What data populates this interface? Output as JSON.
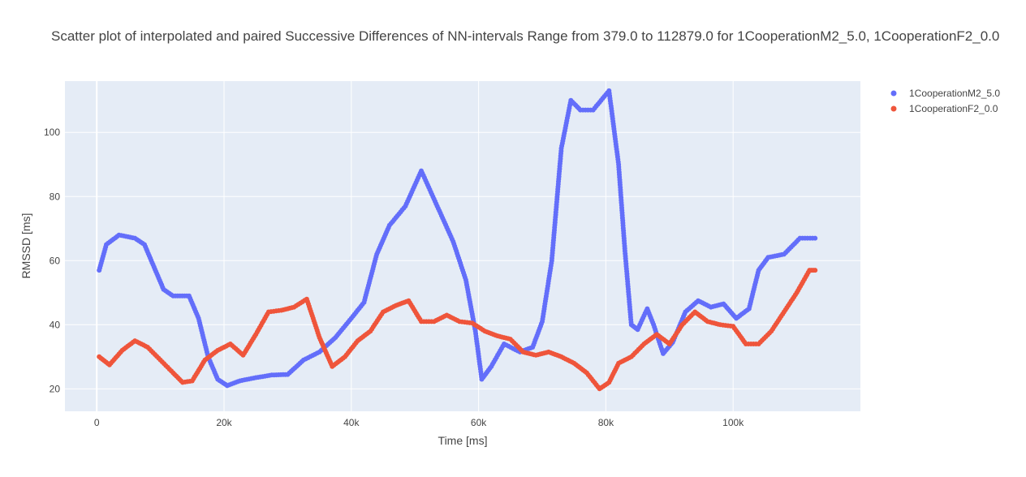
{
  "chart_data": {
    "type": "scatter",
    "title": "Scatter plot of interpolated and paired Successive Differences of NN-intervals Range from 379.0 to 112879.0 for 1CooperationM2_5.0, 1CooperationF2_0.0",
    "xlabel": "Time [ms]",
    "ylabel": "RMSSD [ms]",
    "xlim": [
      -5000,
      120000
    ],
    "ylim": [
      13,
      116
    ],
    "x_tick_values": [
      0,
      20000,
      40000,
      60000,
      80000,
      100000
    ],
    "x_tick_labels": [
      "0",
      "20k",
      "40k",
      "60k",
      "80k",
      "100k"
    ],
    "y_tick_values": [
      20,
      40,
      60,
      80,
      100
    ],
    "y_tick_labels": [
      "20",
      "40",
      "60",
      "80",
      "100"
    ],
    "grid": true,
    "legend_position": "top-right",
    "x_range": [
      379,
      112879
    ],
    "series": [
      {
        "name": "1CooperationM2_5.0",
        "color": "#636efa",
        "x": [
          379,
          1500,
          3500,
          6000,
          7500,
          9000,
          10500,
          12000,
          14500,
          16000,
          17500,
          19000,
          20500,
          22500,
          25000,
          27500,
          30000,
          32500,
          35000,
          37500,
          40000,
          42000,
          44000,
          46000,
          48500,
          51000,
          53500,
          56000,
          58000,
          59500,
          60500,
          62000,
          64000,
          66500,
          68500,
          70000,
          71500,
          73000,
          74500,
          76000,
          78000,
          80500,
          82000,
          83000,
          84000,
          85000,
          86500,
          87500,
          89000,
          90500,
          92500,
          94500,
          96500,
          98500,
          100500,
          102500,
          104000,
          105500,
          108000,
          110500,
          112879
        ],
        "y": [
          57,
          65,
          68,
          67,
          65,
          58,
          51,
          49,
          49,
          42,
          30,
          23,
          21,
          22.5,
          23.5,
          24.3,
          24.5,
          29,
          31.5,
          36,
          42,
          47,
          62,
          71,
          77,
          88,
          77,
          66,
          54,
          38,
          23,
          27,
          34,
          31.5,
          33,
          41,
          60,
          95,
          110,
          107,
          107,
          113,
          90,
          63,
          40,
          38.5,
          45,
          40,
          31,
          34.5,
          44,
          47.5,
          45.5,
          46.5,
          42,
          45,
          57,
          61,
          62,
          67,
          67
        ]
      },
      {
        "name": "1CooperationF2_0.0",
        "color": "#ef553b",
        "x": [
          379,
          2000,
          4000,
          6000,
          8000,
          10000,
          12000,
          13500,
          15000,
          17000,
          19000,
          21000,
          23000,
          25000,
          27000,
          29000,
          31000,
          33000,
          35000,
          37000,
          39000,
          41000,
          43000,
          45000,
          47000,
          49000,
          51000,
          53000,
          55000,
          57000,
          59000,
          61000,
          63000,
          65000,
          67000,
          69000,
          71000,
          73000,
          75000,
          77000,
          79000,
          80500,
          82000,
          84000,
          86000,
          88000,
          90000,
          92000,
          94000,
          96000,
          98000,
          100000,
          102000,
          104000,
          106000,
          108000,
          110000,
          112000,
          112879
        ],
        "y": [
          30,
          27.5,
          32,
          35,
          33,
          29,
          25,
          22,
          22.5,
          29,
          32,
          34,
          30.5,
          37,
          44,
          44.5,
          45.5,
          48,
          36,
          27,
          30,
          35,
          38,
          44,
          46,
          47.5,
          41,
          41,
          43,
          41,
          40.5,
          38,
          36.5,
          35.5,
          31.5,
          30.5,
          31.5,
          30,
          28,
          25,
          20,
          22,
          28,
          30,
          34,
          37,
          34,
          40,
          44,
          41,
          40,
          39.5,
          34,
          34,
          38,
          44,
          50,
          57,
          57
        ]
      }
    ]
  }
}
